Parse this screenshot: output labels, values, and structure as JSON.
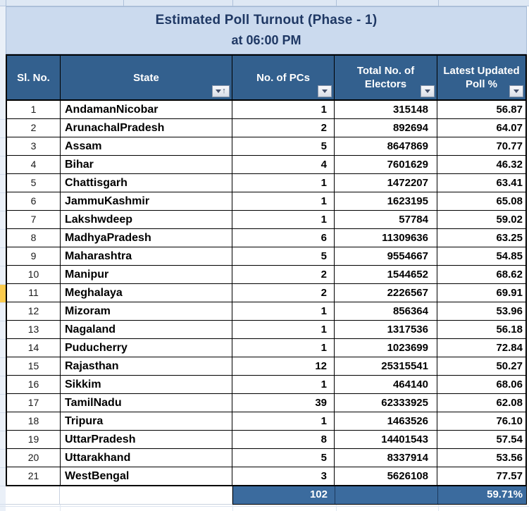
{
  "title": {
    "line1": "Estimated Poll Turnout (Phase - 1)",
    "line2": "at 06:00 PM"
  },
  "columns": [
    {
      "id": "sl_no",
      "label": "Sl. No.",
      "filter": false
    },
    {
      "id": "state",
      "label": "State",
      "filter": true,
      "sort": "ascending"
    },
    {
      "id": "pcs",
      "label": "No. of PCs",
      "filter": true
    },
    {
      "id": "electors",
      "label": "Total No. of Electors",
      "filter": true
    },
    {
      "id": "poll_pct",
      "label": "Latest Updated Poll %",
      "filter": true
    }
  ],
  "rows": [
    {
      "sl_no": "1",
      "state": "AndamanNicobar",
      "pcs": "1",
      "electors": "315148",
      "poll_pct": "56.87"
    },
    {
      "sl_no": "2",
      "state": "ArunachalPradesh",
      "pcs": "2",
      "electors": "892694",
      "poll_pct": "64.07"
    },
    {
      "sl_no": "3",
      "state": "Assam",
      "pcs": "5",
      "electors": "8647869",
      "poll_pct": "70.77"
    },
    {
      "sl_no": "4",
      "state": "Bihar",
      "pcs": "4",
      "electors": "7601629",
      "poll_pct": "46.32"
    },
    {
      "sl_no": "5",
      "state": "Chattisgarh",
      "pcs": "1",
      "electors": "1472207",
      "poll_pct": "63.41"
    },
    {
      "sl_no": "6",
      "state": "JammuKashmir",
      "pcs": "1",
      "electors": "1623195",
      "poll_pct": "65.08"
    },
    {
      "sl_no": "7",
      "state": "Lakshwdeep",
      "pcs": "1",
      "electors": "57784",
      "poll_pct": "59.02"
    },
    {
      "sl_no": "8",
      "state": "MadhyaPradesh",
      "pcs": "6",
      "electors": "11309636",
      "poll_pct": "63.25"
    },
    {
      "sl_no": "9",
      "state": "Maharashtra",
      "pcs": "5",
      "electors": "9554667",
      "poll_pct": "54.85"
    },
    {
      "sl_no": "10",
      "state": "Manipur",
      "pcs": "2",
      "electors": "1544652",
      "poll_pct": "68.62"
    },
    {
      "sl_no": "11",
      "state": "Meghalaya",
      "pcs": "2",
      "electors": "2226567",
      "poll_pct": "69.91"
    },
    {
      "sl_no": "12",
      "state": "Mizoram",
      "pcs": "1",
      "electors": "856364",
      "poll_pct": "53.96"
    },
    {
      "sl_no": "13",
      "state": "Nagaland",
      "pcs": "1",
      "electors": "1317536",
      "poll_pct": "56.18"
    },
    {
      "sl_no": "14",
      "state": "Puducherry",
      "pcs": "1",
      "electors": "1023699",
      "poll_pct": "72.84"
    },
    {
      "sl_no": "15",
      "state": "Rajasthan",
      "pcs": "12",
      "electors": "25315541",
      "poll_pct": "50.27"
    },
    {
      "sl_no": "16",
      "state": "Sikkim",
      "pcs": "1",
      "electors": "464140",
      "poll_pct": "68.06"
    },
    {
      "sl_no": "17",
      "state": "TamilNadu",
      "pcs": "39",
      "electors": "62333925",
      "poll_pct": "62.08"
    },
    {
      "sl_no": "18",
      "state": "Tripura",
      "pcs": "1",
      "electors": "1463526",
      "poll_pct": "76.10"
    },
    {
      "sl_no": "19",
      "state": "UttarPradesh",
      "pcs": "8",
      "electors": "14401543",
      "poll_pct": "57.54"
    },
    {
      "sl_no": "20",
      "state": "Uttarakhand",
      "pcs": "5",
      "electors": "8337914",
      "poll_pct": "53.56"
    },
    {
      "sl_no": "21",
      "state": "WestBengal",
      "pcs": "3",
      "electors": "5626108",
      "poll_pct": "77.57"
    }
  ],
  "totals": {
    "pcs": "102",
    "poll_pct": "59.71%"
  },
  "annotations": {
    "highlighted_row": "11",
    "highlight_color": "#FBCB4D"
  },
  "colors": {
    "title_bg": "#CBDAEE",
    "title_text": "#1F3864",
    "header_bg": "#33608E",
    "header_text": "#FFFFFF",
    "total_bg": "#3B6B9E",
    "row_bg": "#FFFFFF",
    "grid_border": "#000000",
    "sheet_strip_bg": "#DEE8F4"
  }
}
